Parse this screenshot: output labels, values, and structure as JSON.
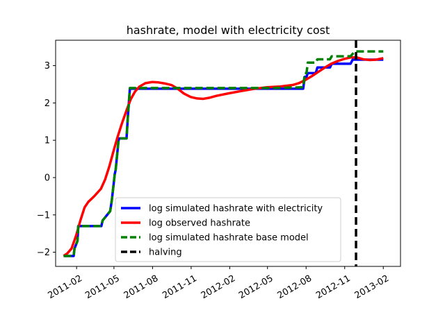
{
  "chart_data": {
    "type": "line",
    "title": "hashrate, model with electricity cost",
    "xlabel": "",
    "ylabel": "",
    "x_ticks": [
      "2011-02-01",
      "2011-05-01",
      "2011-08-01",
      "2011-11-01",
      "2012-02-01",
      "2012-05-01",
      "2012-08-01",
      "2012-11-01",
      "2013-02-01"
    ],
    "x_tick_labels": [
      "2011-02",
      "2011-05",
      "2011-08",
      "2011-11",
      "2012-02",
      "2012-05",
      "2012-08",
      "2012-11",
      "2013-02"
    ],
    "xlim": [
      "2010-12-13",
      "2013-03-14"
    ],
    "y_ticks": [
      -2,
      -1,
      0,
      1,
      2,
      3
    ],
    "y_tick_labels": [
      "−2",
      "−1",
      "0",
      "1",
      "2",
      "3"
    ],
    "ylim": [
      -2.38,
      3.68
    ],
    "grid": false,
    "legend": {
      "placement": "lower-center"
    },
    "series": [
      {
        "name": "log simulated hashrate with electricity",
        "color": "#0000ff",
        "style": "solid",
        "x": [
          "2011-01-01",
          "2011-01-25",
          "2011-01-27",
          "2011-02-03",
          "2011-02-05",
          "2011-04-01",
          "2011-04-04",
          "2011-04-22",
          "2011-04-26",
          "2011-05-03",
          "2011-05-05",
          "2011-05-12",
          "2011-05-14",
          "2011-05-31",
          "2011-06-03",
          "2011-06-08",
          "2011-08-15",
          "2011-12-31",
          "2012-05-15",
          "2012-07-25",
          "2012-07-29",
          "2012-08-02",
          "2012-08-05",
          "2012-08-24",
          "2012-08-28",
          "2012-09-27",
          "2012-10-01",
          "2012-11-15",
          "2012-11-20",
          "2013-02-01"
        ],
        "y": [
          -2.1,
          -2.1,
          -1.9,
          -1.7,
          -1.3,
          -1.3,
          -1.15,
          -0.9,
          -0.6,
          0.1,
          0.2,
          1.0,
          1.05,
          1.05,
          1.6,
          2.38,
          2.38,
          2.38,
          2.38,
          2.38,
          2.7,
          2.7,
          2.8,
          2.8,
          2.95,
          2.95,
          3.05,
          3.05,
          3.16,
          3.16
        ]
      },
      {
        "name": "log observed hashrate",
        "color": "#ff0000",
        "style": "solid",
        "x": [
          "2011-01-01",
          "2011-01-10",
          "2011-01-20",
          "2011-01-31",
          "2011-02-10",
          "2011-02-20",
          "2011-03-01",
          "2011-03-15",
          "2011-03-31",
          "2011-04-10",
          "2011-04-20",
          "2011-05-01",
          "2011-05-10",
          "2011-05-20",
          "2011-05-31",
          "2011-06-10",
          "2011-06-20",
          "2011-07-01",
          "2011-07-15",
          "2011-07-31",
          "2011-08-15",
          "2011-08-31",
          "2011-09-15",
          "2011-09-30",
          "2011-10-15",
          "2011-10-31",
          "2011-11-15",
          "2011-11-30",
          "2011-12-15",
          "2011-12-31",
          "2012-01-31",
          "2012-02-29",
          "2012-03-31",
          "2012-04-30",
          "2012-05-31",
          "2012-06-30",
          "2012-07-15",
          "2012-07-31",
          "2012-08-15",
          "2012-08-31",
          "2012-09-15",
          "2012-09-30",
          "2012-10-15",
          "2012-10-31",
          "2012-11-15",
          "2012-11-30",
          "2012-12-15",
          "2012-12-31",
          "2013-01-15",
          "2013-02-01"
        ],
        "y": [
          -2.1,
          -2.03,
          -1.9,
          -1.55,
          -1.15,
          -0.8,
          -0.65,
          -0.5,
          -0.3,
          -0.05,
          0.3,
          0.75,
          1.1,
          1.45,
          1.8,
          2.1,
          2.3,
          2.44,
          2.53,
          2.56,
          2.55,
          2.52,
          2.48,
          2.38,
          2.25,
          2.16,
          2.12,
          2.11,
          2.14,
          2.19,
          2.26,
          2.32,
          2.38,
          2.42,
          2.44,
          2.48,
          2.53,
          2.62,
          2.72,
          2.84,
          2.95,
          3.05,
          3.12,
          3.18,
          3.22,
          3.22,
          3.17,
          3.15,
          3.16,
          3.2
        ]
      },
      {
        "name": "log simulated hashrate base model",
        "color": "#008000",
        "style": "dashed",
        "x": [
          "2011-01-01",
          "2011-01-25",
          "2011-01-27",
          "2011-02-03",
          "2011-02-05",
          "2011-04-01",
          "2011-04-04",
          "2011-04-22",
          "2011-04-26",
          "2011-05-03",
          "2011-05-05",
          "2011-05-12",
          "2011-05-14",
          "2011-05-31",
          "2011-06-03",
          "2011-06-08",
          "2011-08-15",
          "2011-12-31",
          "2012-05-15",
          "2012-07-25",
          "2012-07-29",
          "2012-08-02",
          "2012-08-05",
          "2012-08-24",
          "2012-08-28",
          "2012-09-27",
          "2012-10-01",
          "2012-11-15",
          "2012-11-25",
          "2013-02-01"
        ],
        "y": [
          -2.1,
          -2.1,
          -1.9,
          -1.7,
          -1.3,
          -1.3,
          -1.15,
          -0.9,
          -0.6,
          0.1,
          0.2,
          1.0,
          1.05,
          1.05,
          1.6,
          2.4,
          2.4,
          2.4,
          2.4,
          2.42,
          2.8,
          2.8,
          3.08,
          3.08,
          3.17,
          3.17,
          3.25,
          3.25,
          3.38,
          3.38
        ]
      },
      {
        "name": "halving",
        "color": "#000000",
        "style": "dashed",
        "vertical_x": "2012-11-28"
      }
    ]
  }
}
